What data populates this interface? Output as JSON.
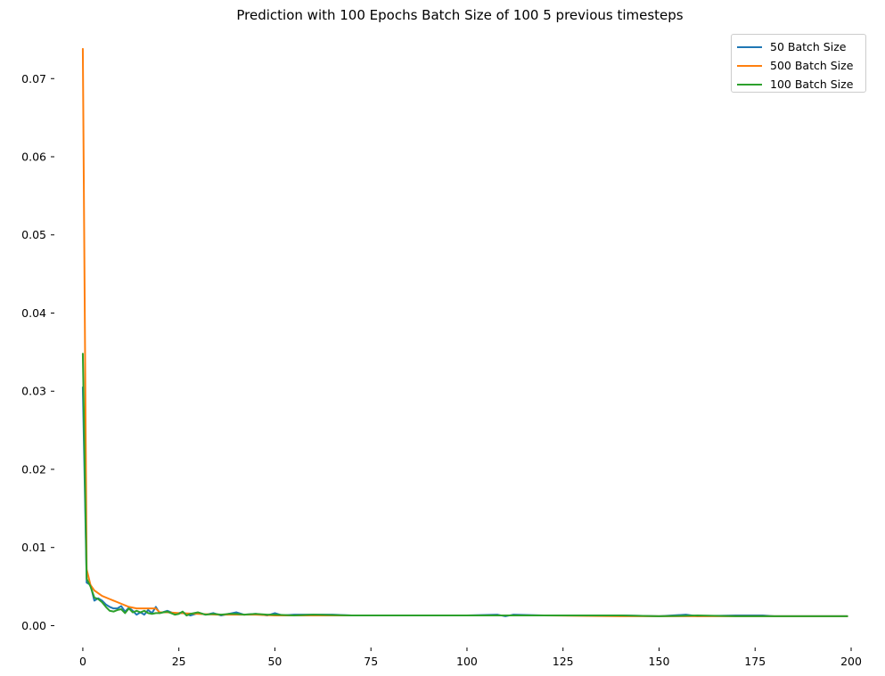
{
  "chart_data": {
    "type": "line",
    "title": "Prediction with 100 Epochs Batch Size of 100 5 previous timesteps",
    "xlabel": "",
    "ylabel": "",
    "xlim": [
      -3,
      200
    ],
    "ylim": [
      -0.002,
      0.0755
    ],
    "xticks": [
      0,
      25,
      50,
      75,
      100,
      125,
      150,
      175,
      200
    ],
    "yticks": [
      0.0,
      0.01,
      0.02,
      0.03,
      0.04,
      0.05,
      0.06,
      0.07
    ],
    "xtick_labels": [
      "0",
      "25",
      "50",
      "75",
      "100",
      "125",
      "150",
      "175",
      "200"
    ],
    "ytick_labels": [
      "0.00",
      "0.01",
      "0.02",
      "0.03",
      "0.04",
      "0.05",
      "0.06",
      "0.07"
    ],
    "grid": false,
    "legend_position": "top-right",
    "series": [
      {
        "name": "50 Batch Size",
        "color": "#1f77b4",
        "x": [
          0,
          1,
          2,
          3,
          4,
          5,
          6,
          7,
          8,
          9,
          10,
          11,
          12,
          13,
          14,
          15,
          16,
          17,
          18,
          19,
          20,
          22,
          24,
          26,
          28,
          30,
          32,
          34,
          36,
          38,
          40,
          42,
          45,
          48,
          50,
          52,
          55,
          60,
          65,
          70,
          80,
          90,
          100,
          108,
          110,
          112,
          120,
          125,
          130,
          140,
          150,
          157,
          160,
          170,
          177,
          180,
          190,
          199
        ],
        "y": [
          0.0305,
          0.0055,
          0.0052,
          0.0032,
          0.0035,
          0.0032,
          0.0027,
          0.0024,
          0.0022,
          0.0022,
          0.0025,
          0.0018,
          0.0023,
          0.0019,
          0.0014,
          0.0017,
          0.0014,
          0.002,
          0.0016,
          0.0024,
          0.0016,
          0.0019,
          0.0015,
          0.0017,
          0.0013,
          0.0016,
          0.0014,
          0.0016,
          0.0013,
          0.0015,
          0.0017,
          0.0014,
          0.0015,
          0.0013,
          0.0016,
          0.0013,
          0.0014,
          0.0014,
          0.0014,
          0.0013,
          0.0013,
          0.0013,
          0.0013,
          0.0014,
          0.0012,
          0.0014,
          0.0013,
          0.0013,
          0.0013,
          0.0013,
          0.0012,
          0.0014,
          0.0012,
          0.0013,
          0.0013,
          0.0012,
          0.0012,
          0.0012
        ]
      },
      {
        "name": "500 Batch Size",
        "color": "#ff7f0e",
        "x": [
          0,
          1,
          2,
          3,
          5,
          7,
          10,
          12,
          14,
          16,
          18,
          19,
          20,
          22,
          25,
          30,
          35,
          40,
          45,
          50,
          55,
          60,
          70,
          80,
          90,
          100,
          120,
          140,
          160,
          180,
          199
        ],
        "y": [
          0.0738,
          0.0072,
          0.0052,
          0.0045,
          0.0038,
          0.0034,
          0.0028,
          0.0024,
          0.0022,
          0.0022,
          0.0022,
          0.0022,
          0.0017,
          0.0017,
          0.0016,
          0.0015,
          0.0014,
          0.0014,
          0.0014,
          0.0013,
          0.0013,
          0.0013,
          0.0013,
          0.0013,
          0.0013,
          0.0013,
          0.0013,
          0.0012,
          0.0012,
          0.0012,
          0.0012
        ]
      },
      {
        "name": "100 Batch Size",
        "color": "#2ca02c",
        "x": [
          0,
          1,
          2,
          3,
          4,
          5,
          6,
          7,
          8,
          9,
          10,
          11,
          12,
          13,
          14,
          15,
          16,
          17,
          18,
          19,
          20,
          22,
          24,
          25,
          26,
          27,
          28,
          30,
          32,
          34,
          36,
          38,
          40,
          42,
          45,
          48,
          50,
          55,
          60,
          70,
          80,
          90,
          100,
          110,
          120,
          130,
          140,
          150,
          160,
          170,
          180,
          190,
          199
        ],
        "y": [
          0.0348,
          0.006,
          0.005,
          0.0036,
          0.0034,
          0.003,
          0.0024,
          0.0019,
          0.0018,
          0.002,
          0.0021,
          0.0016,
          0.0022,
          0.0017,
          0.0019,
          0.0017,
          0.0019,
          0.0016,
          0.0015,
          0.0016,
          0.0016,
          0.0018,
          0.0014,
          0.0015,
          0.0018,
          0.0013,
          0.0015,
          0.0017,
          0.0014,
          0.0015,
          0.0014,
          0.0015,
          0.0015,
          0.0014,
          0.0015,
          0.0014,
          0.0014,
          0.0013,
          0.0014,
          0.0013,
          0.0013,
          0.0013,
          0.0013,
          0.0013,
          0.0013,
          0.0013,
          0.0013,
          0.0012,
          0.0013,
          0.0012,
          0.0012,
          0.0012,
          0.0012
        ]
      }
    ]
  }
}
